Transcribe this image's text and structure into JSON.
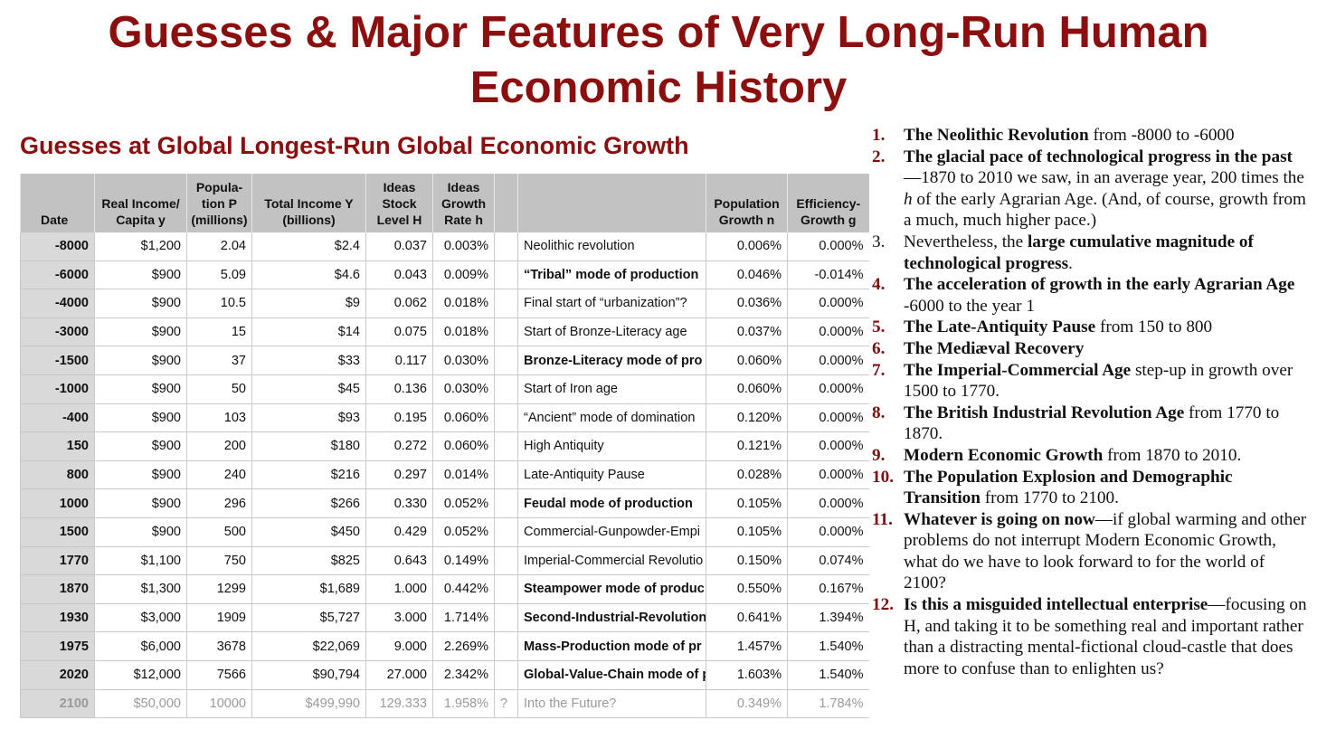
{
  "title": "Guesses & Major Features of Very Long-Run Human Economic History",
  "subtitle": "Guesses at Global Longest-Run Global Economic Growth",
  "table": {
    "headers": {
      "date": "Date",
      "income": "Real Income/ Capita y",
      "pop": "Popula-tion P (millions)",
      "total": "Total Income Y (billions)",
      "stock": "Ideas Stock Level H",
      "rate": "Ideas Growth Rate h",
      "q": "",
      "label": "",
      "popgrowth": "Population Growth n",
      "eff": "Efficiency-Growth g"
    },
    "rows": [
      {
        "date": "-8000",
        "income": "$1,200",
        "pop": "2.04",
        "total": "$2.4",
        "stock": "0.037",
        "rate": "0.003%",
        "q": "",
        "label": "Neolithic revolution",
        "popgrowth": "0.006%",
        "eff": "0.000%"
      },
      {
        "date": "-6000",
        "income": "$900",
        "pop": "5.09",
        "total": "$4.6",
        "stock": "0.043",
        "rate": "0.009%",
        "q": "",
        "label": "“Tribal” mode of production",
        "popgrowth": "0.046%",
        "eff": "-0.014%"
      },
      {
        "date": "-4000",
        "income": "$900",
        "pop": "10.5",
        "total": "$9",
        "stock": "0.062",
        "rate": "0.018%",
        "q": "",
        "label": "Final start of “urbanization”?",
        "popgrowth": "0.036%",
        "eff": "0.000%"
      },
      {
        "date": "-3000",
        "income": "$900",
        "pop": "15",
        "total": "$14",
        "stock": "0.075",
        "rate": "0.018%",
        "q": "",
        "label": "Start of Bronze-Literacy age",
        "popgrowth": "0.037%",
        "eff": "0.000%"
      },
      {
        "date": "-1500",
        "income": "$900",
        "pop": "37",
        "total": "$33",
        "stock": "0.117",
        "rate": "0.030%",
        "q": "",
        "label": "Bronze-Literacy mode of pro",
        "popgrowth": "0.060%",
        "eff": "0.000%"
      },
      {
        "date": "-1000",
        "income": "$900",
        "pop": "50",
        "total": "$45",
        "stock": "0.136",
        "rate": "0.030%",
        "q": "",
        "label": "Start of Iron age",
        "popgrowth": "0.060%",
        "eff": "0.000%"
      },
      {
        "date": "-400",
        "income": "$900",
        "pop": "103",
        "total": "$93",
        "stock": "0.195",
        "rate": "0.060%",
        "q": "",
        "label": "“Ancient” mode of domination",
        "popgrowth": "0.120%",
        "eff": "0.000%"
      },
      {
        "date": "150",
        "income": "$900",
        "pop": "200",
        "total": "$180",
        "stock": "0.272",
        "rate": "0.060%",
        "q": "",
        "label": "High Antiquity",
        "popgrowth": "0.121%",
        "eff": "0.000%"
      },
      {
        "date": "800",
        "income": "$900",
        "pop": "240",
        "total": "$216",
        "stock": "0.297",
        "rate": "0.014%",
        "q": "",
        "label": "Late-Antiquity Pause",
        "popgrowth": "0.028%",
        "eff": "0.000%"
      },
      {
        "date": "1000",
        "income": "$900",
        "pop": "296",
        "total": "$266",
        "stock": "0.330",
        "rate": "0.052%",
        "q": "",
        "label": "Feudal mode of production",
        "popgrowth": "0.105%",
        "eff": "0.000%"
      },
      {
        "date": "1500",
        "income": "$900",
        "pop": "500",
        "total": "$450",
        "stock": "0.429",
        "rate": "0.052%",
        "q": "",
        "label": "Commercial-Gunpowder-Empi",
        "popgrowth": "0.105%",
        "eff": "0.000%"
      },
      {
        "date": "1770",
        "income": "$1,100",
        "pop": "750",
        "total": "$825",
        "stock": "0.643",
        "rate": "0.149%",
        "q": "",
        "label": "Imperial-Commercial Revolutio",
        "popgrowth": "0.150%",
        "eff": "0.074%"
      },
      {
        "date": "1870",
        "income": "$1,300",
        "pop": "1299",
        "total": "$1,689",
        "stock": "1.000",
        "rate": "0.442%",
        "q": "",
        "label": "Steampower mode of produc",
        "popgrowth": "0.550%",
        "eff": "0.167%"
      },
      {
        "date": "1930",
        "income": "$3,000",
        "pop": "1909",
        "total": "$5,727",
        "stock": "3.000",
        "rate": "1.714%",
        "q": "",
        "label": "Second-Industrial-Revolution",
        "popgrowth": "0.641%",
        "eff": "1.394%"
      },
      {
        "date": "1975",
        "income": "$6,000",
        "pop": "3678",
        "total": "$22,069",
        "stock": "9.000",
        "rate": "2.269%",
        "q": "",
        "label": "Mass-Production mode of pr",
        "popgrowth": "1.457%",
        "eff": "1.540%"
      },
      {
        "date": "2020",
        "income": "$12,000",
        "pop": "7566",
        "total": "$90,794",
        "stock": "27.000",
        "rate": "2.342%",
        "q": "",
        "label": "Global-Value-Chain mode of p",
        "popgrowth": "1.603%",
        "eff": "1.540%"
      },
      {
        "date": "2100",
        "income": "$50,000",
        "pop": "10000",
        "total": "$499,990",
        "stock": "129.333",
        "rate": "1.958%",
        "q": "?",
        "label": "Into the Future?",
        "popgrowth": "0.349%",
        "eff": "1.784%"
      }
    ]
  },
  "features": [
    {
      "num": "1.",
      "parts": [
        {
          "t": "The Neolithic Revolution",
          "b": true
        },
        {
          "t": " from -8000 to -6000",
          "b": false
        }
      ]
    },
    {
      "num": "2.",
      "parts": [
        {
          "t": "The glacial pace of technological progress in the past",
          "b": true
        },
        {
          "t": "—1870 to 2010 we saw, in an average year, 200 times the ",
          "b": false
        },
        {
          "t": "h",
          "i": true
        },
        {
          "t": " of the early Agrarian Age. (And, of course, growth from a much, much higher pace.)",
          "b": false
        }
      ]
    },
    {
      "num": "3.",
      "plain": true,
      "parts": [
        {
          "t": "Nevertheless, the ",
          "b": false
        },
        {
          "t": "large cumulative magnitude of technological progress",
          "b": true
        },
        {
          "t": ".",
          "b": false
        }
      ]
    },
    {
      "num": "4.",
      "parts": [
        {
          "t": "The acceleration of growth in the early Agrarian Age",
          "b": true
        },
        {
          "t": " -6000 to the year 1",
          "b": false
        }
      ]
    },
    {
      "num": "5.",
      "parts": [
        {
          "t": "The Late-Antiquity Pause",
          "b": true
        },
        {
          "t": " from 150 to 800",
          "b": false
        }
      ]
    },
    {
      "num": "6.",
      "parts": [
        {
          "t": "The Mediæval Recovery",
          "b": true
        }
      ]
    },
    {
      "num": "7.",
      "parts": [
        {
          "t": "The Imperial-Commercial Age",
          "b": true
        },
        {
          "t": " step-up in growth over 1500 to 1770.",
          "b": false
        }
      ]
    },
    {
      "num": "8.",
      "parts": [
        {
          "t": "The British Industrial Revolution Age",
          "b": true
        },
        {
          "t": " from 1770 to 1870.",
          "b": false
        }
      ]
    },
    {
      "num": "9.",
      "parts": [
        {
          "t": "Modern Economic Growth",
          "b": true
        },
        {
          "t": " from 1870 to 2010.",
          "b": false
        }
      ]
    },
    {
      "num": "10.",
      "parts": [
        {
          "t": "The Population Explosion and Demographic Transition",
          "b": true
        },
        {
          "t": " from 1770 to 2100.",
          "b": false
        }
      ]
    },
    {
      "num": "11.",
      "parts": [
        {
          "t": "Whatever is going on now",
          "b": true
        },
        {
          "t": "—if global warming and other problems do not interrupt Modern Economic Growth, what do we have to look forward to for the world of 2100?",
          "b": false
        }
      ]
    },
    {
      "num": "12.",
      "parts": [
        {
          "t": "Is this a misguided intellectual enterprise",
          "b": true
        },
        {
          "t": "—focusing on H, and taking it to be something real and important rather than a distracting mental-fictional cloud-castle that does more to confuse than to enlighten us?",
          "b": false
        }
      ]
    }
  ]
}
